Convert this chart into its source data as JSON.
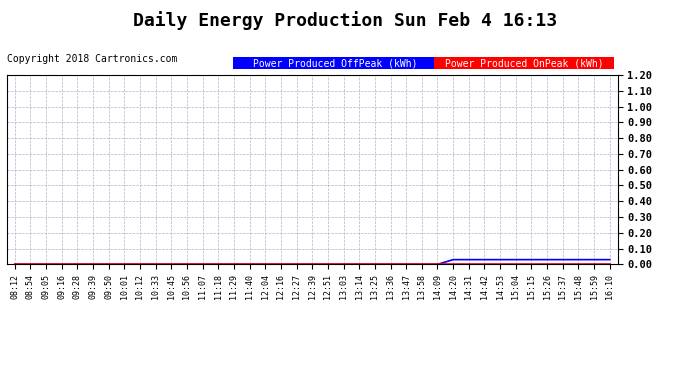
{
  "title": "Daily Energy Production Sun Feb 4 16:13",
  "copyright": "Copyright 2018 Cartronics.com",
  "ylim": [
    0.0,
    1.2
  ],
  "yticks": [
    0.0,
    0.1,
    0.2,
    0.3,
    0.4,
    0.5,
    0.6,
    0.7,
    0.8,
    0.9,
    1.0,
    1.1,
    1.2
  ],
  "x_labels": [
    "08:12",
    "08:54",
    "09:05",
    "09:16",
    "09:28",
    "09:39",
    "09:50",
    "10:01",
    "10:12",
    "10:33",
    "10:45",
    "10:56",
    "11:07",
    "11:18",
    "11:29",
    "11:40",
    "12:04",
    "12:16",
    "12:27",
    "12:39",
    "12:51",
    "13:03",
    "13:14",
    "13:25",
    "13:36",
    "13:47",
    "13:58",
    "14:09",
    "14:20",
    "14:31",
    "14:42",
    "14:53",
    "15:04",
    "15:15",
    "15:26",
    "15:37",
    "15:48",
    "15:59",
    "16:10"
  ],
  "offpeak_values": [
    0,
    0,
    0,
    0,
    0,
    0,
    0,
    0,
    0,
    0,
    0,
    0,
    0,
    0,
    0,
    0,
    0,
    0,
    0,
    0,
    0,
    0,
    0,
    0,
    0,
    0,
    0,
    0,
    0.03,
    0.03,
    0.03,
    0.03,
    0.03,
    0.03,
    0.03,
    0.03,
    0.03,
    0.03,
    0.03
  ],
  "onpeak_values": [
    0,
    0,
    0,
    0,
    0,
    0,
    0,
    0,
    0,
    0,
    0,
    0,
    0,
    0,
    0,
    0,
    0,
    0,
    0,
    0,
    0,
    0,
    0,
    0,
    0,
    0,
    0,
    0,
    0,
    0,
    0,
    0,
    0,
    0,
    0,
    0,
    0,
    0,
    0
  ],
  "offpeak_color": "#0000ff",
  "onpeak_color": "#ff0000",
  "legend_offpeak_label": "Power Produced OffPeak (kWh)",
  "legend_onpeak_label": "Power Produced OnPeak (kWh)",
  "legend_offpeak_bg": "#0000ff",
  "legend_onpeak_bg": "#ff0000",
  "background_color": "#ffffff",
  "grid_color": "#aaaacc",
  "title_fontsize": 13,
  "tick_fontsize": 6,
  "copyright_fontsize": 7,
  "legend_fontsize": 7
}
